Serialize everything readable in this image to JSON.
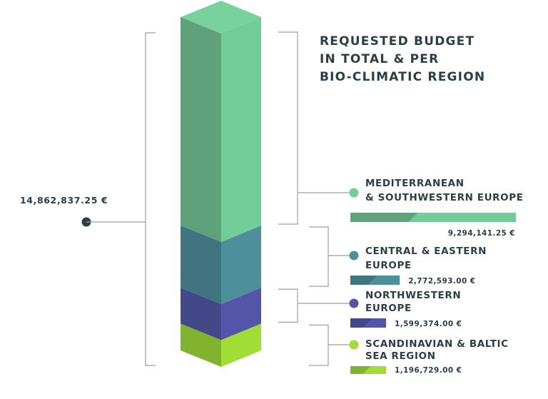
{
  "chart_data": {
    "type": "bar",
    "title": "REQUESTED BUDGET IN TOTAL & PER BIO-CLIMATIC REGION",
    "title_lines": [
      "REQUESTED BUDGET",
      "IN TOTAL & PER",
      "BIO-CLIMATIC REGION"
    ],
    "total_label": "14,862,837.25 €",
    "total": 14862837.25,
    "categories": [
      "MEDITERRANEAN & SOUTHWESTERN EUROPE",
      "CENTRAL & EASTERN EUROPE",
      "NORTHWESTERN EUROPE",
      "SCANDINAVIAN & BALTIC SEA REGION"
    ],
    "values": [
      9294141.25,
      2772593.0,
      1599374.0,
      1196729.0
    ],
    "series": [
      {
        "label_lines": [
          "MEDITERRANEAN",
          "& SOUTHWESTERN EUROPE"
        ],
        "value": 9294141.25,
        "value_label": "9,294,141.25 €",
        "color_light": "#72cc98",
        "color_dark": "#5ea17a",
        "color_top": "#78d29e"
      },
      {
        "label_lines": [
          "CENTRAL & EASTERN",
          "EUROPE"
        ],
        "value": 2772593.0,
        "value_label": "2,772,593.00 €",
        "color_light": "#4f8f9c",
        "color_dark": "#3f7480",
        "color_top": "#5599a6"
      },
      {
        "label_lines": [
          "NORTHWESTERN",
          "EUROPE"
        ],
        "value": 1599374.0,
        "value_label": "1,599,374.00 €",
        "color_light": "#5355a8",
        "color_dark": "#434888",
        "color_top": "#5a5cb0"
      },
      {
        "label_lines": [
          "SCANDINAVIAN & BALTIC",
          "SEA REGION"
        ],
        "value": 1196729.0,
        "value_label": "1,196,729.00 €",
        "color_light": "#a2dc37",
        "color_dark": "#82b32e",
        "color_top": "#a8e23f"
      }
    ],
    "legend_placement": "right",
    "grid": false
  }
}
